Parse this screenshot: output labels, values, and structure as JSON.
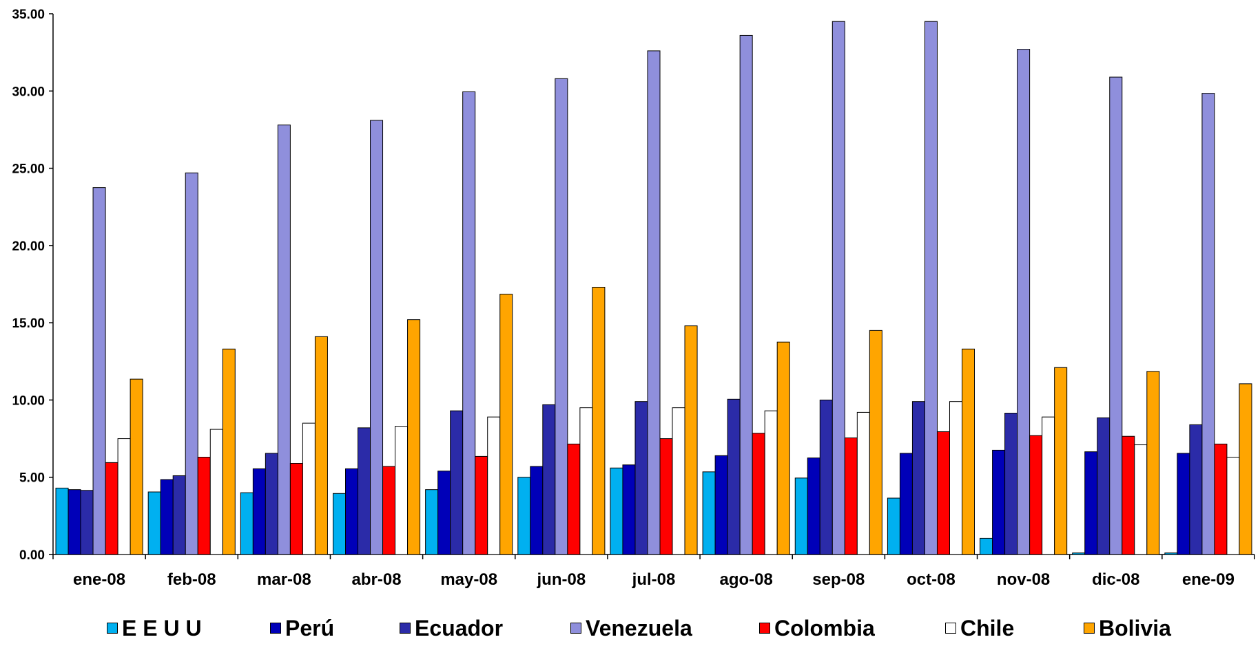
{
  "chart_data": {
    "type": "bar",
    "title": "",
    "xlabel": "",
    "ylabel": "",
    "ylim": [
      0,
      35
    ],
    "yticks": [
      "0.00",
      "5.00",
      "10.00",
      "15.00",
      "20.00",
      "25.00",
      "30.00",
      "35.00"
    ],
    "grid": false,
    "legend_position": "bottom",
    "categories": [
      "ene-08",
      "feb-08",
      "mar-08",
      "abr-08",
      "may-08",
      "jun-08",
      "jul-08",
      "ago-08",
      "sep-08",
      "oct-08",
      "nov-08",
      "dic-08",
      "ene-09"
    ],
    "series": [
      {
        "name": "E E U U",
        "color": "#00B0F0",
        "values": [
          4.3,
          4.05,
          4.0,
          3.95,
          4.2,
          5.0,
          5.6,
          5.35,
          4.95,
          3.65,
          1.05,
          0.1,
          0.1
        ]
      },
      {
        "name": "Perú",
        "color": "#0000B8",
        "values": [
          4.2,
          4.85,
          5.55,
          5.55,
          5.4,
          5.7,
          5.8,
          6.4,
          6.25,
          6.55,
          6.75,
          6.65,
          6.55
        ]
      },
      {
        "name": "Ecuador",
        "color": "#2B2BA8",
        "values": [
          4.15,
          5.1,
          6.55,
          8.2,
          9.3,
          9.7,
          9.9,
          10.05,
          10.0,
          9.9,
          9.15,
          8.85,
          8.4
        ]
      },
      {
        "name": "Venezuela",
        "color": "#8F8FDC",
        "values": [
          23.75,
          24.7,
          27.8,
          28.1,
          29.95,
          30.8,
          32.6,
          33.6,
          34.5,
          34.5,
          32.7,
          30.9,
          29.85
        ]
      },
      {
        "name": "Colombia",
        "color": "#FF0000",
        "values": [
          5.95,
          6.3,
          5.9,
          5.7,
          6.35,
          7.15,
          7.5,
          7.85,
          7.55,
          7.95,
          7.7,
          7.65,
          7.15
        ]
      },
      {
        "name": "Chile",
        "color": "#FFFFFF",
        "values": [
          7.5,
          8.1,
          8.5,
          8.3,
          8.9,
          9.5,
          9.5,
          9.3,
          9.2,
          9.9,
          8.9,
          7.1,
          6.3
        ]
      },
      {
        "name": "Bolivia",
        "color": "#FFA500",
        "values": [
          11.35,
          13.3,
          14.1,
          15.2,
          16.85,
          17.3,
          14.8,
          13.75,
          14.5,
          13.3,
          12.1,
          11.85,
          11.05
        ]
      }
    ]
  }
}
